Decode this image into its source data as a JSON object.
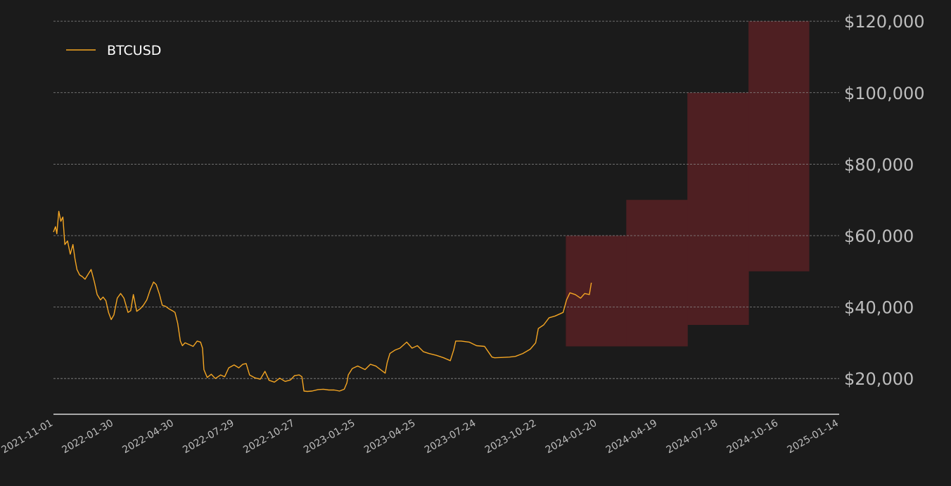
{
  "chart_data": {
    "type": "line",
    "title": "",
    "xlabel": "",
    "ylabel": "",
    "xlim": [
      "2021-11-01",
      "2025-01-14"
    ],
    "ylim": [
      10000,
      122000
    ],
    "y_ticks": [
      20000,
      40000,
      60000,
      80000,
      100000,
      120000
    ],
    "y_tick_labels": [
      "$20,000",
      "$40,000",
      "$60,000",
      "$80,000",
      "$100,000",
      "$120,000"
    ],
    "x_ticks": [
      "2021-11-01",
      "2022-01-30",
      "2022-04-30",
      "2022-07-29",
      "2022-10-27",
      "2023-01-25",
      "2023-04-25",
      "2023-07-24",
      "2023-10-22",
      "2024-01-20",
      "2024-04-19",
      "2024-07-18",
      "2024-10-16",
      "2025-01-14"
    ],
    "grid": "horizontal dashed",
    "legend": {
      "position": "top-left",
      "entries": [
        "BTCUSD"
      ]
    },
    "colors": {
      "background": "#1b1b1b",
      "line": "#f5a623",
      "band": "#4e1f22",
      "grid": "#8a8a8a",
      "text": "#bdbdbd",
      "legend_text": "#ffffff"
    },
    "series": [
      {
        "name": "BTCUSD",
        "x": [
          "2021-11-01",
          "2021-11-04",
          "2021-11-06",
          "2021-11-09",
          "2021-11-12",
          "2021-11-15",
          "2021-11-18",
          "2021-11-22",
          "2021-11-26",
          "2021-11-30",
          "2021-12-03",
          "2021-12-06",
          "2021-12-10",
          "2021-12-14",
          "2021-12-18",
          "2021-12-22",
          "2021-12-27",
          "2022-01-01",
          "2022-01-05",
          "2022-01-10",
          "2022-01-14",
          "2022-01-18",
          "2022-01-22",
          "2022-01-26",
          "2022-01-30",
          "2022-02-04",
          "2022-02-09",
          "2022-02-14",
          "2022-02-20",
          "2022-02-24",
          "2022-02-28",
          "2022-03-05",
          "2022-03-10",
          "2022-03-15",
          "2022-03-20",
          "2022-03-25",
          "2022-03-30",
          "2022-04-03",
          "2022-04-08",
          "2022-04-12",
          "2022-04-17",
          "2022-04-22",
          "2022-04-27",
          "2022-05-01",
          "2022-05-05",
          "2022-05-09",
          "2022-05-12",
          "2022-05-16",
          "2022-05-22",
          "2022-05-28",
          "2022-06-03",
          "2022-06-08",
          "2022-06-11",
          "2022-06-13",
          "2022-06-18",
          "2022-06-24",
          "2022-06-30",
          "2022-07-08",
          "2022-07-14",
          "2022-07-20",
          "2022-07-28",
          "2022-08-04",
          "2022-08-10",
          "2022-08-15",
          "2022-08-20",
          "2022-08-28",
          "2022-09-05",
          "2022-09-12",
          "2022-09-18",
          "2022-09-26",
          "2022-10-04",
          "2022-10-12",
          "2022-10-20",
          "2022-10-26",
          "2022-11-02",
          "2022-11-06",
          "2022-11-09",
          "2022-11-14",
          "2022-11-21",
          "2022-11-30",
          "2022-12-08",
          "2022-12-16",
          "2022-12-24",
          "2023-01-01",
          "2023-01-08",
          "2023-01-12",
          "2023-01-14",
          "2023-01-20",
          "2023-01-28",
          "2023-02-08",
          "2023-02-16",
          "2023-02-24",
          "2023-03-03",
          "2023-03-10",
          "2023-03-13",
          "2023-03-17",
          "2023-03-25",
          "2023-04-01",
          "2023-04-11",
          "2023-04-19",
          "2023-04-27",
          "2023-05-06",
          "2023-05-14",
          "2023-05-25",
          "2023-06-05",
          "2023-06-15",
          "2023-06-20",
          "2023-06-23",
          "2023-07-01",
          "2023-07-13",
          "2023-07-24",
          "2023-08-05",
          "2023-08-16",
          "2023-08-20",
          "2023-09-01",
          "2023-09-11",
          "2023-09-20",
          "2023-10-01",
          "2023-10-12",
          "2023-10-20",
          "2023-10-24",
          "2023-11-01",
          "2023-11-09",
          "2023-11-18",
          "2023-11-30",
          "2023-12-05",
          "2023-12-10",
          "2023-12-18",
          "2023-12-26",
          "2024-01-01",
          "2024-01-08",
          "2024-01-11"
        ],
        "values": [
          61000,
          62500,
          60500,
          66800,
          64000,
          65200,
          57500,
          58500,
          54800,
          57500,
          53500,
          50500,
          49000,
          48500,
          47800,
          49000,
          50500,
          47000,
          43500,
          42000,
          42800,
          41800,
          38500,
          36500,
          37800,
          42500,
          43800,
          42500,
          38500,
          39000,
          43500,
          38800,
          39500,
          40500,
          42000,
          44800,
          47000,
          46300,
          43500,
          40500,
          40200,
          39500,
          39000,
          38500,
          35500,
          30500,
          29200,
          30000,
          29500,
          29000,
          30500,
          30200,
          28500,
          22500,
          20300,
          21200,
          20000,
          21000,
          20500,
          23000,
          23800,
          23000,
          24000,
          24200,
          21000,
          20200,
          19800,
          22000,
          19500,
          19000,
          20100,
          19200,
          19600,
          20800,
          21000,
          20500,
          16500,
          16400,
          16500,
          16900,
          17000,
          16800,
          16800,
          16500,
          17000,
          18800,
          21000,
          22800,
          23500,
          22500,
          24000,
          23500,
          22500,
          21500,
          24500,
          27000,
          28000,
          28500,
          30200,
          28500,
          29200,
          27500,
          27000,
          26500,
          25800,
          25000,
          28000,
          30500,
          30500,
          30200,
          29200,
          29000,
          26000,
          25800,
          25900,
          26000,
          26200,
          27000,
          28200,
          30000,
          34000,
          35000,
          37000,
          37500,
          38500,
          42000,
          44000,
          43500,
          42500,
          43800,
          43500,
          46800
        ]
      }
    ],
    "bands": [
      {
        "x_start": "2023-12-04",
        "x_end": "2024-03-03",
        "y_low": 29000,
        "y_high": 60000
      },
      {
        "x_start": "2024-03-03",
        "x_end": "2024-06-02",
        "y_low": 29000,
        "y_high": 70000
      },
      {
        "x_start": "2024-06-02",
        "x_end": "2024-09-01",
        "y_low": 35000,
        "y_high": 100000
      },
      {
        "x_start": "2024-09-01",
        "x_end": "2024-11-30",
        "y_low": 50000,
        "y_high": 120000
      }
    ]
  }
}
